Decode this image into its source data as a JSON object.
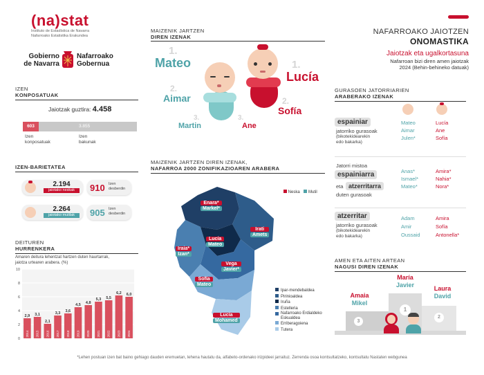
{
  "brand": {
    "logo_text": "(na)stat",
    "logo_sub1": "Instituto de Estadística de Navarra",
    "logo_sub2": "Nafarroako Estatistika Erakundea",
    "gov_left1": "Gobierno",
    "gov_left2": "de Navarra",
    "gov_right1": "Nafarroako",
    "gov_right2": "Gobernua"
  },
  "header": {
    "title1": "NAFARROAKO JAIOTZEN",
    "title2": "ONOMASTIKA",
    "subtitle": "Jaiotzak eta ugalkortasuna",
    "desc1": "Nafarroan bizi diren amen jaiotzak",
    "desc2": "2024 (Behin-behineko datuak)"
  },
  "composition": {
    "title1": "IZEN",
    "title2": "KONPOSATUAK",
    "total_label": "Jaiotzak guztira:",
    "total_value": "4.458",
    "compound_value": "603",
    "simple_value": "3.855",
    "compound_label1": "Izen",
    "compound_label2": "konposatuak",
    "simple_label1": "Izen",
    "simple_label2": "bakunak"
  },
  "variety": {
    "title": "IZEN-BARIETATEA",
    "girls_births": "2.194",
    "girls_caption": "jaiotako neskak",
    "girls_names": "910",
    "girls_names_label1": "Izen",
    "girls_names_label2": "desberdin",
    "boys_births": "2.264",
    "boys_caption": "jaiotako mutilak",
    "boys_names": "905",
    "boys_names_label1": "Izen",
    "boys_names_label2": "desberdin"
  },
  "inheritance": {
    "title1": "DEITUREN",
    "title2": "HURRENKERA",
    "desc1": "Amaren deitura lehentzat hartzen duten haurtarrak,",
    "desc2": "jaiotza urtearen arabera. (%)"
  },
  "chart_data": {
    "type": "bar",
    "categories": [
      "2014",
      "2015",
      "2016",
      "2017",
      "2018",
      "2019",
      "2020",
      "2021",
      "2022",
      "2023",
      "2024"
    ],
    "values": [
      2.9,
      3.1,
      2.1,
      3.3,
      3.6,
      4.5,
      4.8,
      5.3,
      5.5,
      6.2,
      6.0
    ],
    "value_labels": [
      "2,9",
      "3,1",
      "2,1",
      "3,3",
      "3,6",
      "4,5",
      "4,8",
      "5,3",
      "5,5",
      "6,2",
      "6,0"
    ],
    "yticks": [
      0,
      2,
      4,
      6,
      8,
      10
    ],
    "ylim": [
      0,
      10
    ],
    "xlabel": "",
    "ylabel": ""
  },
  "top_names": {
    "title1": "MAIZENIK JARTZEN",
    "title2": "DIREN IZENAK",
    "boys": [
      {
        "rank": "1.",
        "name": "Mateo"
      },
      {
        "rank": "2.",
        "name": "Aimar"
      },
      {
        "rank": "3.",
        "name": "Martin"
      }
    ],
    "girls": [
      {
        "rank": "1.",
        "name": "Lucía"
      },
      {
        "rank": "2.",
        "name": "Sofía"
      },
      {
        "rank": "3.",
        "name": "Ane"
      }
    ]
  },
  "map": {
    "title1": "MAIZENIK JARTZEN DIREN IZENAK,",
    "title2": "NAFARROA 2000 ZONIFIKAZIOAREN ARABERA",
    "legend_girl": "Neska",
    "legend_boy": "Mutil",
    "labels": [
      {
        "girl": "Enara*",
        "boy": "Markel*"
      },
      {
        "girl": "Irati",
        "boy": "Amets"
      },
      {
        "girl": "Lucía",
        "boy": "Mateo"
      },
      {
        "girl": "Iraia*",
        "boy": "Izan*"
      },
      {
        "girl": "Vega",
        "boy": "Javier*"
      },
      {
        "girl": "Sofía",
        "boy": "Mateo"
      },
      {
        "girl": "Lucía",
        "boy": "Mohamed"
      }
    ],
    "zones": [
      {
        "name": "Ipar-mendebaldea",
        "color": "#1f3f66"
      },
      {
        "name": "Pirinioaldea",
        "color": "#2e5c8a"
      },
      {
        "name": "Iruña",
        "color": "#0f2a4a"
      },
      {
        "name": "Estelleria",
        "color": "#4a7fb0"
      },
      {
        "name": "Nafarroako Erdialdeko Eskualdea",
        "color": "#3569a0"
      },
      {
        "name": "Erriberagoiena",
        "color": "#7aa9d4"
      },
      {
        "name": "Tutera",
        "color": "#a9cbe8"
      }
    ]
  },
  "origin": {
    "title1": "GURASOEN JATORRIARIEN",
    "title2": "ARABERAKO IZENAK",
    "groups": [
      {
        "tag": "espainiar",
        "desc1": "jatorriko gurasoak",
        "desc2": "(bikotekidearekin",
        "desc3": "edo bakarka)",
        "boys": [
          "Mateo",
          "Aimar",
          "Julen*"
        ],
        "girls": [
          "Lucía",
          "Ane",
          "Sofía"
        ]
      },
      {
        "pre": "Jatorri mistoa",
        "tag": "espainiarra",
        "mid": "eta",
        "tag2": "atzerritarra",
        "desc1": "duten gurasoak",
        "boys": [
          "Anas*",
          "Ismael*",
          "Mateo*"
        ],
        "girls": [
          "Amira*",
          "Nahia*",
          "Nora*"
        ]
      },
      {
        "tag": "atzerritar",
        "desc1": "jatorriko gurasoak",
        "desc2": "(bikotekidearekin",
        "desc3": "edo bakarka)",
        "boys": [
          "Adam",
          "Amir",
          "Oussaid"
        ],
        "girls": [
          "Amira",
          "Sofía",
          "Antonella*"
        ]
      }
    ]
  },
  "mothers": {
    "title1": "AMEN ETA AITEN ARTEAN",
    "title2": "NAGUSI DIREN IZENAK",
    "podium": [
      {
        "rank": "1",
        "girl": "María",
        "boy": "Javier"
      },
      {
        "rank": "2",
        "girl": "Laura",
        "boy": "David"
      },
      {
        "rank": "3",
        "girl": "Amaia",
        "boy": "Mikel"
      }
    ]
  },
  "footnote": "*Lehen postuan izen bat baino gehiago dauden eremuetan, lehena hautatu da, alfabeto-ordenako irizpideei jarraituz. Zerrenda osoa kontsultatzeko, kontsultatu Nastaten webgunea",
  "colors": {
    "accent": "#c8102e",
    "teal": "#4fa3a8",
    "navy": "#1f3f66"
  }
}
